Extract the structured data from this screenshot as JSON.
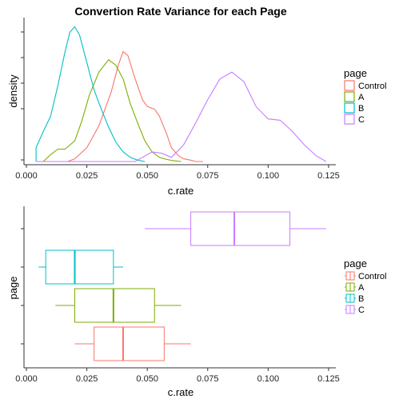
{
  "chart_data": [
    {
      "type": "density",
      "title": "Convertion Rate Variance for each Page",
      "xlabel": "c.rate",
      "ylabel": "density",
      "xlim": [
        -0.001,
        0.128
      ],
      "ylim": [
        0,
        1
      ],
      "x_ticks": [
        "0.000",
        "0.025",
        "0.050",
        "0.075",
        "0.100",
        "0.125"
      ],
      "x_tick_values": [
        0,
        0.025,
        0.05,
        0.075,
        0.1,
        0.125
      ],
      "legend": {
        "title": "page",
        "position": "right"
      },
      "series": [
        {
          "name": "Control",
          "color": "#F8766D",
          "x": [
            0.017,
            0.02,
            0.025,
            0.03,
            0.035,
            0.038,
            0.04,
            0.042,
            0.045,
            0.048,
            0.05,
            0.053,
            0.055,
            0.058,
            0.06,
            0.063,
            0.065,
            0.068,
            0.07,
            0.073
          ],
          "y": [
            0.0,
            0.02,
            0.1,
            0.26,
            0.5,
            0.7,
            0.8,
            0.77,
            0.6,
            0.45,
            0.4,
            0.38,
            0.33,
            0.2,
            0.1,
            0.04,
            0.02,
            0.01,
            0.0,
            0.0
          ]
        },
        {
          "name": "A",
          "color": "#7CAE00",
          "x": [
            0.007,
            0.01,
            0.013,
            0.016,
            0.02,
            0.023,
            0.026,
            0.03,
            0.034,
            0.037,
            0.04,
            0.043,
            0.046,
            0.049,
            0.052,
            0.055,
            0.058,
            0.061,
            0.064
          ],
          "y": [
            0.0,
            0.05,
            0.09,
            0.09,
            0.15,
            0.3,
            0.48,
            0.65,
            0.74,
            0.7,
            0.6,
            0.42,
            0.28,
            0.15,
            0.07,
            0.03,
            0.015,
            0.005,
            0.0
          ]
        },
        {
          "name": "B",
          "color": "#00BFC4",
          "x": [
            0.004,
            0.004,
            0.007,
            0.01,
            0.013,
            0.016,
            0.018,
            0.02,
            0.022,
            0.025,
            0.028,
            0.031,
            0.034,
            0.037,
            0.04,
            0.043,
            0.046,
            0.049
          ],
          "y": [
            0.0,
            0.1,
            0.22,
            0.33,
            0.55,
            0.8,
            0.94,
            0.98,
            0.92,
            0.72,
            0.52,
            0.38,
            0.25,
            0.14,
            0.07,
            0.03,
            0.01,
            0.0
          ]
        },
        {
          "name": "C",
          "color": "#C77CFF",
          "x": [
            0.004,
            0.045,
            0.048,
            0.052,
            0.056,
            0.06,
            0.065,
            0.07,
            0.075,
            0.08,
            0.085,
            0.09,
            0.095,
            0.1,
            0.105,
            0.11,
            0.115,
            0.12,
            0.124,
            0.124
          ],
          "y": [
            0.0,
            0.0,
            0.03,
            0.07,
            0.06,
            0.03,
            0.12,
            0.28,
            0.45,
            0.6,
            0.65,
            0.58,
            0.4,
            0.31,
            0.3,
            0.22,
            0.12,
            0.04,
            0.0,
            0.0
          ]
        }
      ]
    },
    {
      "type": "boxplot",
      "orientation": "horizontal",
      "xlabel": "c.rate",
      "ylabel": "page",
      "xlim": [
        -0.001,
        0.128
      ],
      "x_ticks": [
        "0.000",
        "0.025",
        "0.050",
        "0.075",
        "0.100",
        "0.125"
      ],
      "x_tick_values": [
        0,
        0.025,
        0.05,
        0.075,
        0.1,
        0.125
      ],
      "legend": {
        "title": "page",
        "position": "right"
      },
      "series": [
        {
          "name": "Control",
          "color": "#F8766D",
          "min": 0.02,
          "q1": 0.028,
          "median": 0.04,
          "q3": 0.057,
          "max": 0.068
        },
        {
          "name": "A",
          "color": "#7CAE00",
          "min": 0.012,
          "q1": 0.02,
          "median": 0.036,
          "q3": 0.053,
          "max": 0.064
        },
        {
          "name": "B",
          "color": "#00BFC4",
          "min": 0.005,
          "q1": 0.008,
          "median": 0.02,
          "q3": 0.036,
          "max": 0.04
        },
        {
          "name": "C",
          "color": "#C77CFF",
          "min": 0.049,
          "q1": 0.068,
          "median": 0.086,
          "q3": 0.109,
          "max": 0.124
        }
      ]
    }
  ]
}
